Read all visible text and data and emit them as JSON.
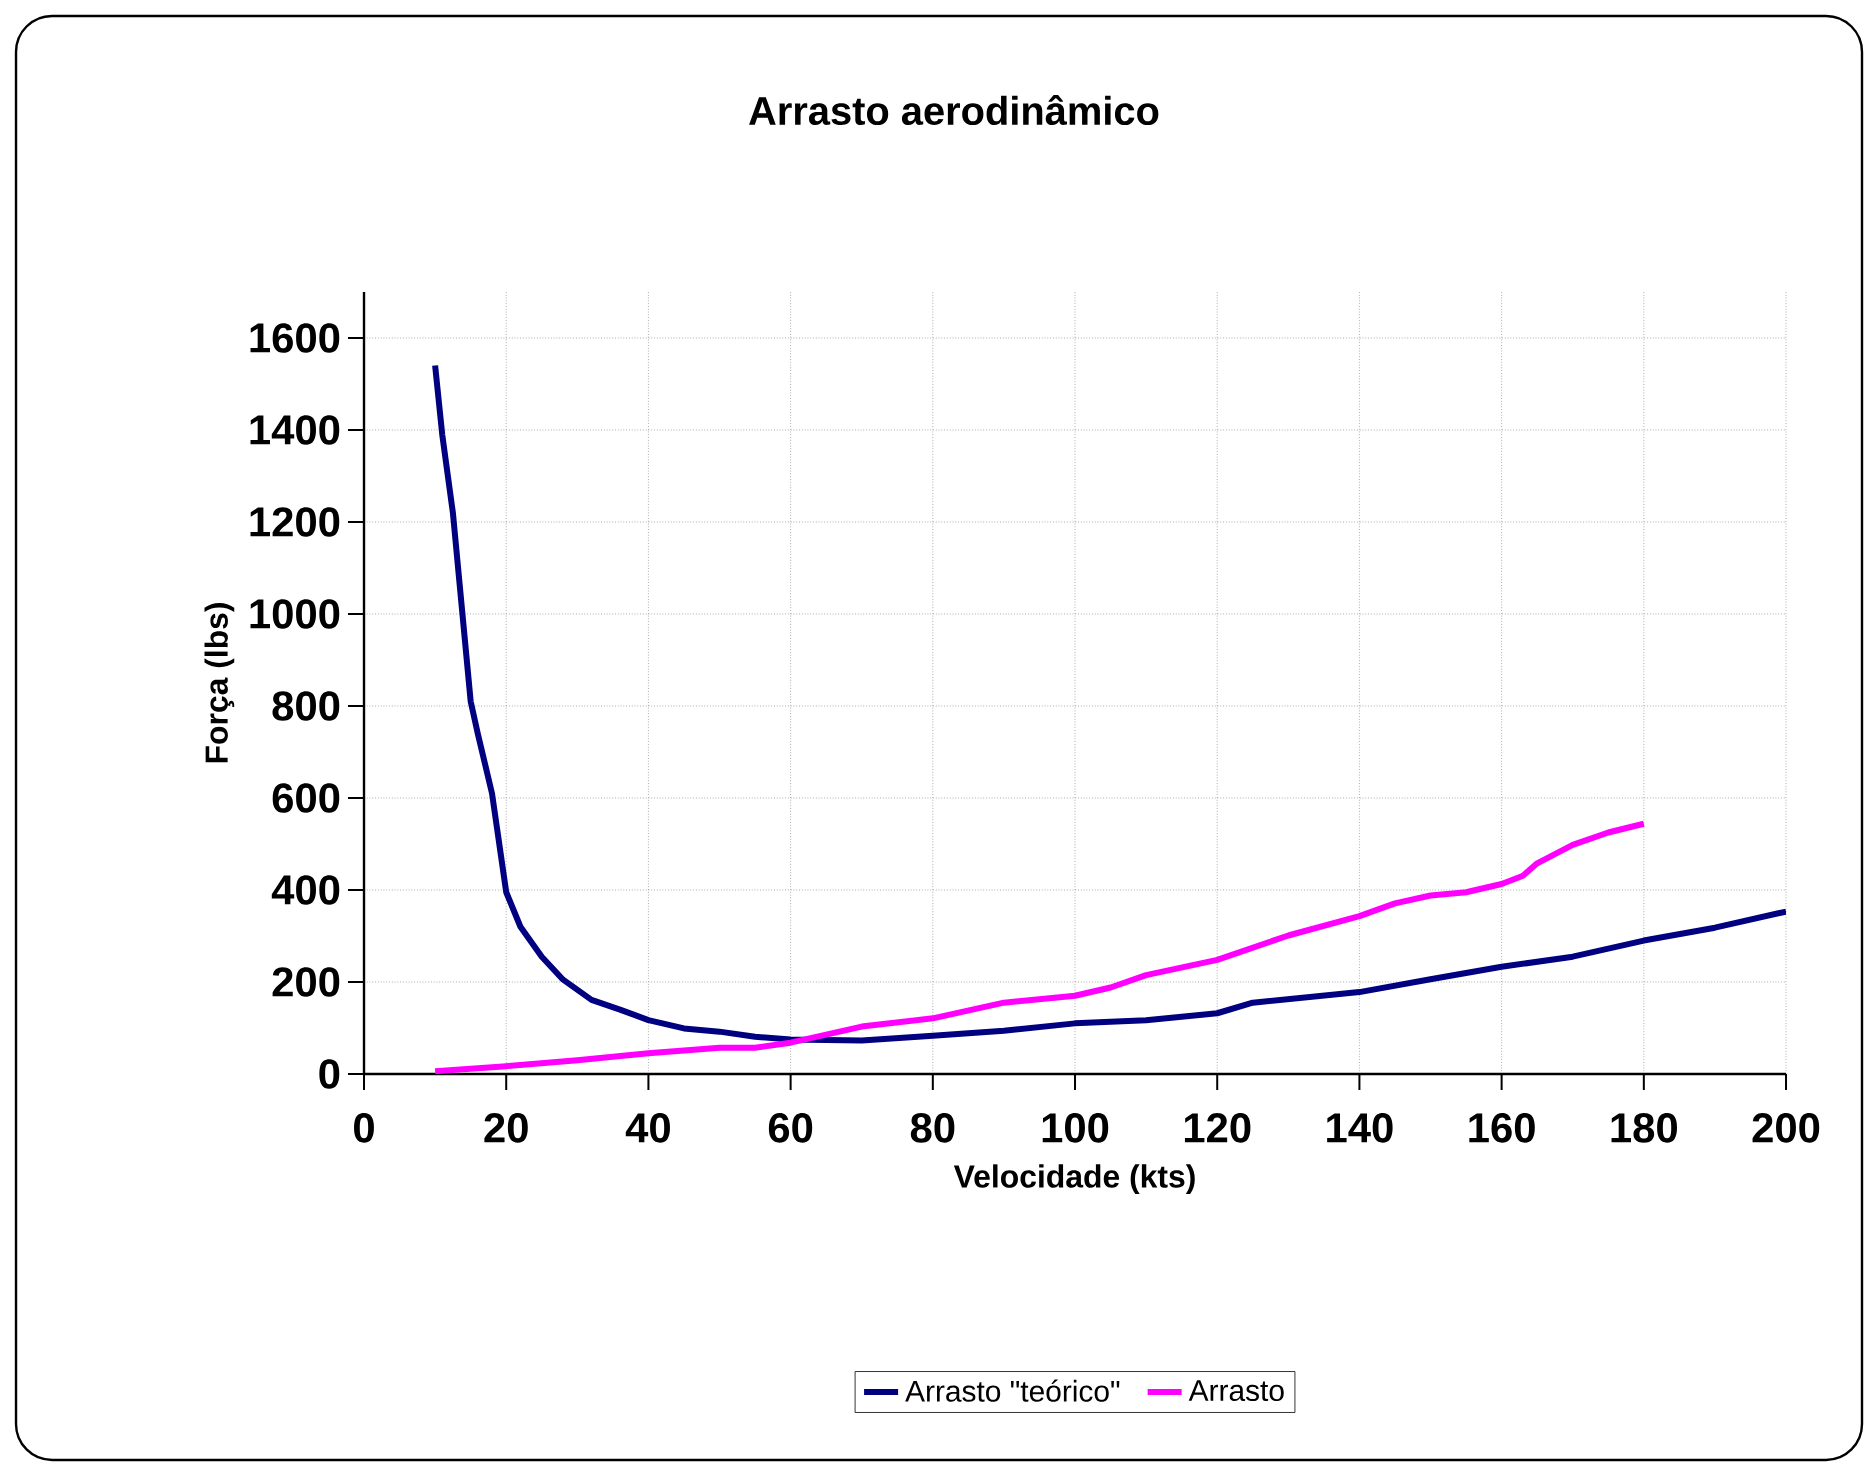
{
  "chart_data": {
    "type": "line",
    "title": "Arrasto aerodinâmico",
    "xlabel": "Velocidade (kts)",
    "ylabel": "Força (lbs)",
    "xlim": [
      0,
      200
    ],
    "xticks": [
      0,
      20,
      40,
      60,
      80,
      100,
      120,
      140,
      160,
      180,
      200
    ],
    "ylim": [
      0,
      1700
    ],
    "yticks": [
      0,
      200,
      400,
      600,
      800,
      1000,
      1200,
      1400,
      1600
    ],
    "grid": true,
    "legend": "bottom",
    "marker": "none",
    "line_style": "solid",
    "series": [
      {
        "name": "Arrasto \"teórico\"",
        "color": "#000080",
        "x": [
          10,
          11,
          12.5,
          15,
          16,
          18,
          20,
          22,
          25,
          28,
          32,
          36,
          40,
          45,
          50,
          55,
          60,
          70,
          80,
          90,
          100,
          110,
          120,
          125,
          140,
          150,
          160,
          170,
          180,
          190,
          200
        ],
        "values": [
          1540,
          1390,
          1220,
          810,
          740,
          610,
          395,
          320,
          255,
          205,
          161,
          140,
          117,
          99,
          92,
          81,
          75,
          73,
          83,
          94,
          110,
          117,
          132,
          155,
          178,
          206,
          233,
          255,
          290,
          318,
          353
        ]
      },
      {
        "name": "Arrasto",
        "color": "#ff00ff",
        "x": [
          10,
          20,
          30,
          40,
          50,
          55,
          60,
          70,
          80,
          90,
          100,
          105,
          110,
          120,
          130,
          140,
          145,
          150,
          155,
          160,
          163,
          165,
          170,
          175,
          180
        ],
        "values": [
          6,
          17,
          30,
          45,
          57,
          57,
          68,
          103,
          121,
          155,
          170,
          188,
          215,
          248,
          301,
          343,
          371,
          388,
          395,
          413,
          431,
          458,
          498,
          525,
          544
        ]
      }
    ]
  }
}
